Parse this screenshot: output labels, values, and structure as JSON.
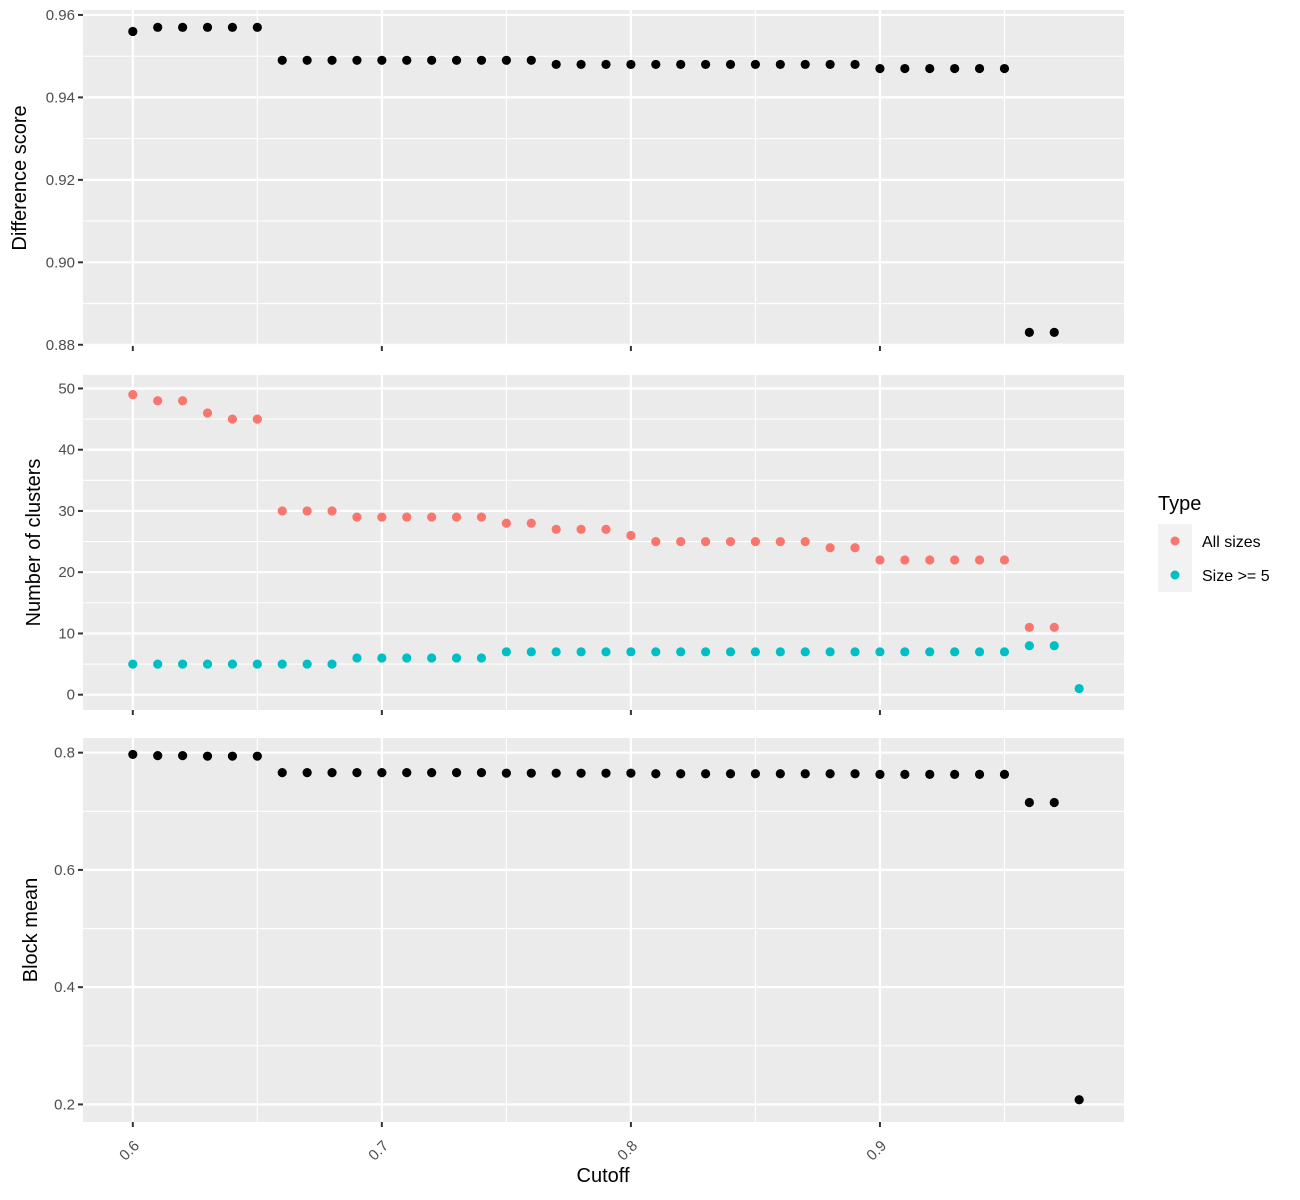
{
  "chart_data": [
    {
      "type": "scatter",
      "panel": "difference",
      "ylabel": "Difference score",
      "ylim": [
        0.88,
        0.96
      ],
      "yticks": [
        0.88,
        0.9,
        0.92,
        0.94,
        0.96
      ],
      "ytick_labels": [
        "0.88",
        "0.90",
        "0.92",
        "0.94",
        "0.96"
      ],
      "grid": true,
      "series": [
        {
          "color": "#000000",
          "x": [
            0.6,
            0.61,
            0.62,
            0.63,
            0.64,
            0.65,
            0.66,
            0.67,
            0.68,
            0.69,
            0.7,
            0.71,
            0.72,
            0.73,
            0.74,
            0.75,
            0.76,
            0.77,
            0.78,
            0.79,
            0.8,
            0.81,
            0.82,
            0.83,
            0.84,
            0.85,
            0.86,
            0.87,
            0.88,
            0.89,
            0.9,
            0.91,
            0.92,
            0.93,
            0.94,
            0.95,
            0.96,
            0.97
          ],
          "y": [
            0.956,
            0.957,
            0.957,
            0.957,
            0.957,
            0.957,
            0.949,
            0.949,
            0.949,
            0.949,
            0.949,
            0.949,
            0.949,
            0.949,
            0.949,
            0.949,
            0.949,
            0.948,
            0.948,
            0.948,
            0.948,
            0.948,
            0.948,
            0.948,
            0.948,
            0.948,
            0.948,
            0.948,
            0.948,
            0.948,
            0.947,
            0.947,
            0.947,
            0.947,
            0.947,
            0.947,
            0.883,
            0.883
          ]
        }
      ]
    },
    {
      "type": "scatter",
      "panel": "clusters",
      "ylabel": "Number of clusters",
      "ylim": [
        0,
        50
      ],
      "yticks": [
        0,
        10,
        20,
        30,
        40,
        50
      ],
      "ytick_labels": [
        "0",
        "10",
        "20",
        "30",
        "40",
        "50"
      ],
      "grid": true,
      "legend": {
        "title": "Type",
        "position": "right"
      },
      "series": [
        {
          "name": "All sizes",
          "color": "#F8766D",
          "x": [
            0.6,
            0.61,
            0.62,
            0.63,
            0.64,
            0.65,
            0.66,
            0.67,
            0.68,
            0.69,
            0.7,
            0.71,
            0.72,
            0.73,
            0.74,
            0.75,
            0.76,
            0.77,
            0.78,
            0.79,
            0.8,
            0.81,
            0.82,
            0.83,
            0.84,
            0.85,
            0.86,
            0.87,
            0.88,
            0.89,
            0.9,
            0.91,
            0.92,
            0.93,
            0.94,
            0.95,
            0.96,
            0.97
          ],
          "y": [
            49,
            48,
            48,
            46,
            45,
            45,
            30,
            30,
            30,
            29,
            29,
            29,
            29,
            29,
            29,
            28,
            28,
            27,
            27,
            27,
            26,
            25,
            25,
            25,
            25,
            25,
            25,
            25,
            24,
            24,
            22,
            22,
            22,
            22,
            22,
            22,
            11,
            11
          ]
        },
        {
          "name": "Size >= 5",
          "color": "#00BFC4",
          "x": [
            0.6,
            0.61,
            0.62,
            0.63,
            0.64,
            0.65,
            0.66,
            0.67,
            0.68,
            0.69,
            0.7,
            0.71,
            0.72,
            0.73,
            0.74,
            0.75,
            0.76,
            0.77,
            0.78,
            0.79,
            0.8,
            0.81,
            0.82,
            0.83,
            0.84,
            0.85,
            0.86,
            0.87,
            0.88,
            0.89,
            0.9,
            0.91,
            0.92,
            0.93,
            0.94,
            0.95,
            0.96,
            0.97,
            0.98
          ],
          "y": [
            5,
            5,
            5,
            5,
            5,
            5,
            5,
            5,
            5,
            6,
            6,
            6,
            6,
            6,
            6,
            7,
            7,
            7,
            7,
            7,
            7,
            7,
            7,
            7,
            7,
            7,
            7,
            7,
            7,
            7,
            7,
            7,
            7,
            7,
            7,
            7,
            8,
            8,
            1
          ]
        }
      ]
    },
    {
      "type": "scatter",
      "panel": "blockmean",
      "ylabel": "Block mean",
      "xlabel": "Cutoff",
      "ylim": [
        0.2,
        0.8
      ],
      "yticks": [
        0.2,
        0.4,
        0.6,
        0.8
      ],
      "ytick_labels": [
        "0.2",
        "0.4",
        "0.6",
        "0.8"
      ],
      "xlim": [
        0.6,
        0.98
      ],
      "xticks": [
        0.6,
        0.7,
        0.8,
        0.9
      ],
      "xtick_labels": [
        "0.6",
        "0.7",
        "0.8",
        "0.9"
      ],
      "grid": true,
      "series": [
        {
          "color": "#000000",
          "x": [
            0.6,
            0.61,
            0.62,
            0.63,
            0.64,
            0.65,
            0.66,
            0.67,
            0.68,
            0.69,
            0.7,
            0.71,
            0.72,
            0.73,
            0.74,
            0.75,
            0.76,
            0.77,
            0.78,
            0.79,
            0.8,
            0.81,
            0.82,
            0.83,
            0.84,
            0.85,
            0.86,
            0.87,
            0.88,
            0.89,
            0.9,
            0.91,
            0.92,
            0.93,
            0.94,
            0.95,
            0.96,
            0.97,
            0.98
          ],
          "y": [
            0.797,
            0.795,
            0.795,
            0.794,
            0.794,
            0.794,
            0.766,
            0.766,
            0.766,
            0.766,
            0.766,
            0.766,
            0.766,
            0.766,
            0.766,
            0.765,
            0.765,
            0.765,
            0.765,
            0.765,
            0.765,
            0.764,
            0.764,
            0.764,
            0.764,
            0.764,
            0.764,
            0.764,
            0.764,
            0.764,
            0.763,
            0.763,
            0.763,
            0.763,
            0.763,
            0.763,
            0.715,
            0.715,
            0.208
          ]
        }
      ]
    }
  ]
}
